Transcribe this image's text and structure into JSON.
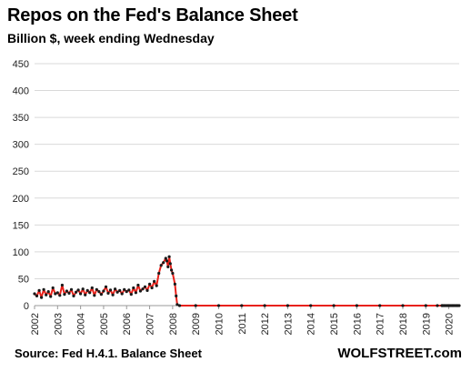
{
  "chart_data": {
    "type": "line",
    "title": "Repos on the Fed's Balance Sheet",
    "subtitle": "Billion $, week ending Wednesday",
    "source": "Source: Fed H.4.1. Balance Sheet",
    "brand": "WOLFSTREET.com",
    "xlabel": "",
    "ylabel": "",
    "xlim": [
      2002.0,
      2020.45
    ],
    "ylim": [
      0,
      450
    ],
    "yticks": [
      "0",
      "50",
      "100",
      "150",
      "200",
      "250",
      "300",
      "350",
      "400",
      "450"
    ],
    "xticks": [
      "2002",
      "2003",
      "2004",
      "2005",
      "2006",
      "2007",
      "2008",
      "2009",
      "2010",
      "2011",
      "2012",
      "2013",
      "2014",
      "2015",
      "2016",
      "2017",
      "2018",
      "2019",
      "2020"
    ],
    "grid": true,
    "colors": {
      "line": "#e8211a",
      "marker": "#1a1a1a",
      "grid": "#d9d9d9"
    },
    "series": [
      {
        "x": [
          2002.0,
          2002.1,
          2002.2,
          2002.3,
          2002.4,
          2002.5,
          2002.6,
          2002.7,
          2002.8,
          2002.9,
          2003.0,
          2003.1,
          2003.2,
          2003.3,
          2003.4,
          2003.5,
          2003.6,
          2003.7,
          2003.8,
          2003.9,
          2004.0,
          2004.1,
          2004.2,
          2004.3,
          2004.4,
          2004.5,
          2004.6,
          2004.7,
          2004.8,
          2004.9,
          2005.0,
          2005.1,
          2005.2,
          2005.3,
          2005.4,
          2005.5,
          2005.6,
          2005.7,
          2005.8,
          2005.9,
          2006.0,
          2006.1,
          2006.2,
          2006.3,
          2006.4,
          2006.5,
          2006.6,
          2006.7,
          2006.8,
          2006.9,
          2007.0,
          2007.1,
          2007.2,
          2007.3,
          2007.4,
          2007.5,
          2007.6,
          2007.7,
          2007.75,
          2007.8,
          2007.85,
          2007.9,
          2007.95,
          2008.0,
          2008.1,
          2008.15,
          2008.2,
          2008.3,
          2009.0,
          2010.0,
          2011.0,
          2012.0,
          2013.0,
          2014.0,
          2015.0,
          2016.0,
          2017.0,
          2018.0,
          2019.0,
          2019.5,
          2019.7,
          2019.72,
          2019.75,
          2019.8,
          2019.85,
          2019.9,
          2019.95,
          2020.0,
          2020.05,
          2020.1,
          2020.15,
          2020.2,
          2020.25,
          2020.3,
          2020.35,
          2020.4,
          2020.45,
          2020.5,
          2020.55,
          2020.6,
          2020.65,
          2020.7,
          2020.75,
          2020.8,
          2020.85,
          2020.9,
          2020.95,
          2021.0,
          2021.05,
          2021.1,
          2021.15,
          2021.2,
          2021.25
        ],
        "values": [
          22,
          18,
          28,
          15,
          30,
          20,
          26,
          17,
          33,
          22,
          24,
          19,
          38,
          21,
          27,
          23,
          30,
          18,
          25,
          29,
          22,
          31,
          20,
          28,
          24,
          33,
          19,
          30,
          26,
          21,
          27,
          35,
          23,
          29,
          20,
          31,
          25,
          28,
          22,
          30,
          26,
          29,
          21,
          33,
          24,
          38,
          27,
          31,
          35,
          28,
          40,
          33,
          45,
          37,
          60,
          75,
          80,
          88,
          83,
          72,
          91,
          78,
          66,
          60,
          40,
          18,
          2,
          0,
          0,
          0,
          0,
          0,
          0,
          0,
          0,
          0,
          0,
          0,
          0,
          0,
          0,
          0,
          0,
          0,
          0,
          0,
          0,
          0,
          0,
          0,
          0,
          0,
          0,
          0,
          0,
          0,
          0,
          0,
          0,
          0,
          0,
          0,
          0,
          0,
          0,
          0,
          0,
          0,
          0,
          0,
          0,
          0,
          0
        ]
      }
    ]
  }
}
